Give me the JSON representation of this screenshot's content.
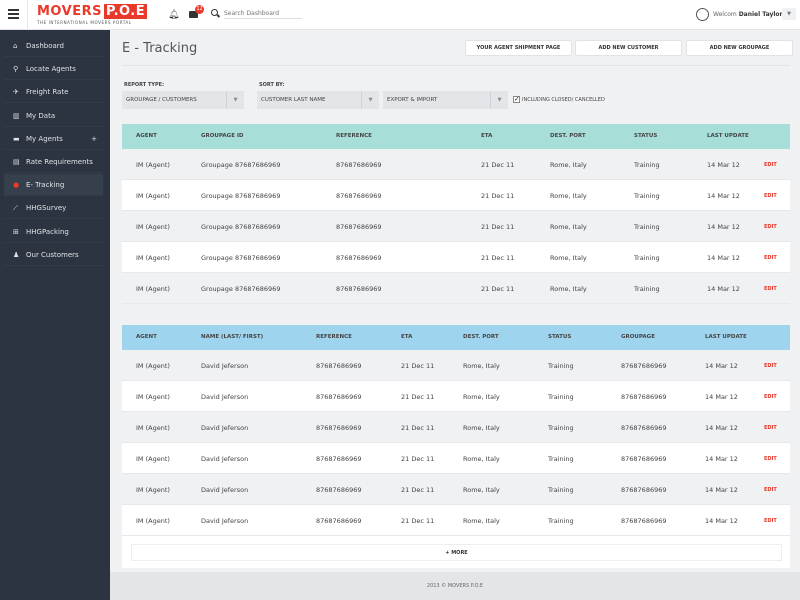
{
  "header": {
    "logo_main": "MOVERS",
    "logo_box": "P.O.E",
    "logo_tagline": "THE INTERNATIONAL MOVERS PORTAL",
    "mail_badge": "12",
    "search_placeholder": "Search Dashboard",
    "welcome": "Welcom",
    "user_name": "Daniel Taylor"
  },
  "sidebar": {
    "items": [
      {
        "label": "Dashboard",
        "icon": "home-icon",
        "glyph": "⌂"
      },
      {
        "label": "Locate Agents",
        "icon": "search-icon",
        "glyph": "⚲"
      },
      {
        "label": "Freight Rate",
        "icon": "plane-icon",
        "glyph": "✈"
      },
      {
        "label": "My Data",
        "icon": "bar-chart-icon",
        "glyph": "▥"
      },
      {
        "label": "My Agents",
        "icon": "briefcase-icon",
        "glyph": "▬",
        "plus": "+"
      },
      {
        "label": "Rate Requirements",
        "icon": "document-icon",
        "glyph": "▤"
      },
      {
        "label": "E- Tracking",
        "icon": "map-pin-icon",
        "glyph": "●",
        "active": true
      },
      {
        "label": "HHGSurvey",
        "icon": "line-chart-icon",
        "glyph": "⟋"
      },
      {
        "label": "HHGPacking",
        "icon": "gift-icon",
        "glyph": "⊞"
      },
      {
        "label": "Our Customers",
        "icon": "users-icon",
        "glyph": "♟"
      }
    ]
  },
  "page": {
    "title": "E - Tracking",
    "buttons": [
      "YOUR AGENT SHIPMENT PAGE",
      "ADD NEW CUSTOMER",
      "ADD NEW GROUPAGE"
    ]
  },
  "filters": {
    "report_type_label": "REPORT TYPE:",
    "report_type": "GROUPAGE / CUSTOMERS",
    "sort_by_label": "SORT BY:",
    "sort_by": "CUSTOMER LAST NAME",
    "direction": "EXPORT & IMPORT",
    "include_closed": "INCLUDING CLOSED/ CANCELLED",
    "include_closed_checked": true
  },
  "colors": {
    "table1_header": "#a8ded8",
    "table2_header": "#9fd4ee",
    "accent": "#e8392a",
    "sidebar": "#2b3440"
  },
  "table1": {
    "headers": [
      "AGENT",
      "GROUPAGE ID",
      "REFERENCE",
      "ETA",
      "DEST. PORT",
      "STATUS",
      "LAST UPDATE"
    ],
    "rows": [
      [
        "IM (Agent)",
        "Groupage 87687686969",
        "87687686969",
        "21 Dec 11",
        "Rome, Italy",
        "Training",
        "14 Mar 12",
        "EDIT"
      ],
      [
        "IM (Agent)",
        "Groupage 87687686969",
        "87687686969",
        "21 Dec 11",
        "Rome, Italy",
        "Training",
        "14 Mar 12",
        "EDIT"
      ],
      [
        "IM (Agent)",
        "Groupage 87687686969",
        "87687686969",
        "21 Dec 11",
        "Rome, Italy",
        "Training",
        "14 Mar 12",
        "EDIT"
      ],
      [
        "IM (Agent)",
        "Groupage 87687686969",
        "87687686969",
        "21 Dec 11",
        "Rome, Italy",
        "Training",
        "14 Mar 12",
        "EDIT"
      ],
      [
        "IM (Agent)",
        "Groupage 87687686969",
        "87687686969",
        "21 Dec 11",
        "Rome, Italy",
        "Training",
        "14 Mar 12",
        "EDIT"
      ]
    ]
  },
  "table2": {
    "headers": [
      "AGENT",
      "NAME (LAST/ FIRST)",
      "REFERENCE",
      "ETA",
      "DEST. PORT",
      "STATUS",
      "GROUPAGE",
      "LAST UPDATE"
    ],
    "rows": [
      [
        "IM (Agent)",
        "David Jeferson",
        "87687686969",
        "21 Dec 11",
        "Rome, Italy",
        "Training",
        "87687686969",
        "14 Mar 12",
        "EDIT"
      ],
      [
        "IM (Agent)",
        "David Jeferson",
        "87687686969",
        "21 Dec 11",
        "Rome, Italy",
        "Training",
        "87687686969",
        "14 Mar 12",
        "EDIT"
      ],
      [
        "IM (Agent)",
        "David Jeferson",
        "87687686969",
        "21 Dec 11",
        "Rome, Italy",
        "Training",
        "87687686969",
        "14 Mar 12",
        "EDIT"
      ],
      [
        "IM (Agent)",
        "David Jeferson",
        "87687686969",
        "21 Dec 11",
        "Rome, Italy",
        "Training",
        "87687686969",
        "14 Mar 12",
        "EDIT"
      ],
      [
        "IM (Agent)",
        "David Jeferson",
        "87687686969",
        "21 Dec 11",
        "Rome, Italy",
        "Training",
        "87687686969",
        "14 Mar 12",
        "EDIT"
      ],
      [
        "IM (Agent)",
        "David Jeferson",
        "87687686969",
        "21 Dec 11",
        "Rome, Italy",
        "Training",
        "87687686969",
        "14 Mar 12",
        "EDIT"
      ]
    ]
  },
  "more_label": "+ MORE",
  "footer": "2013 © MOVERS P.O.E"
}
